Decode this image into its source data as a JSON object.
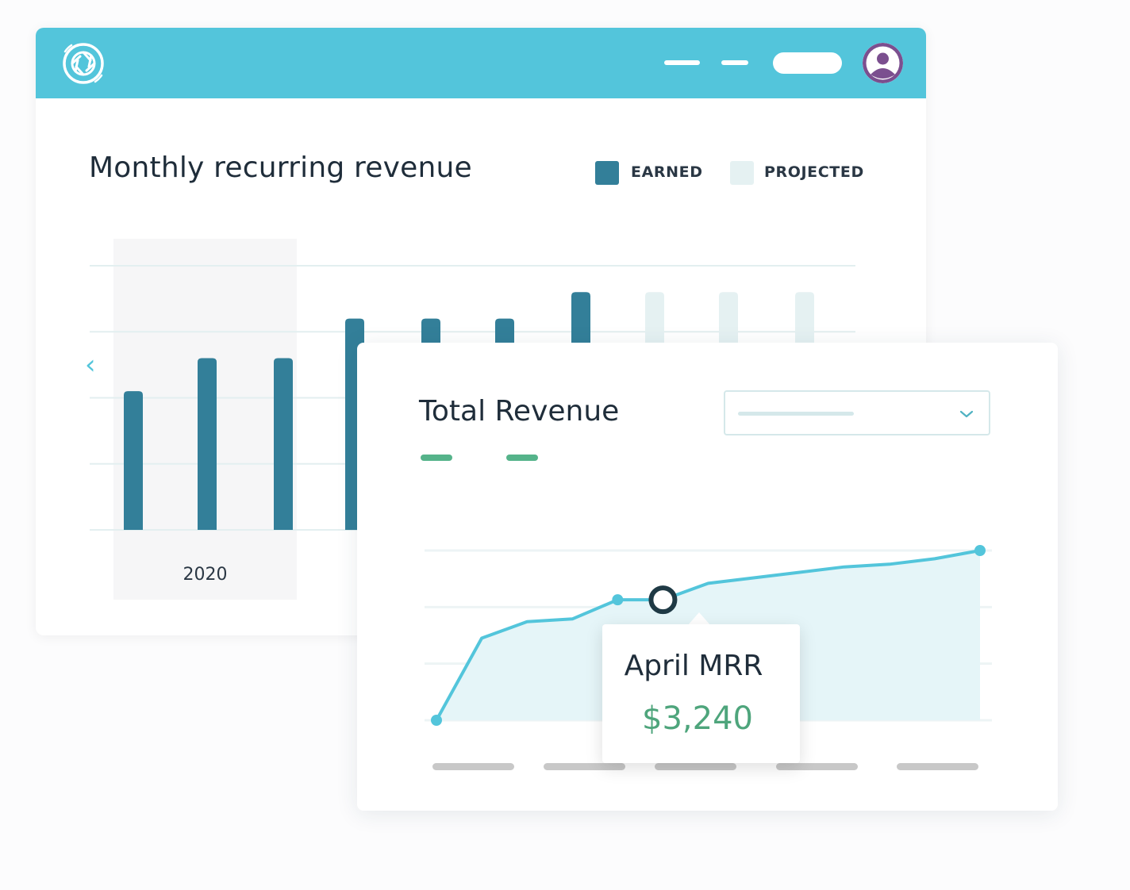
{
  "colors": {
    "topbar": "#53c5db",
    "earned": "#337f99",
    "projected": "#e5f1f2",
    "line": "#53c5db",
    "area": "#e5f5f8",
    "accent_green": "#55b38a",
    "avatar_bg": "#7b4f8f"
  },
  "header": {
    "logo_icon": "aperture-logo-icon",
    "avatar_icon": "user-avatar-icon"
  },
  "mrr_card": {
    "title": "Monthly recurring revenue",
    "legend": [
      {
        "label": "EARNED",
        "color": "#337f99"
      },
      {
        "label": "PROJECTED",
        "color": "#e5f1f2"
      }
    ],
    "year_label": "2020",
    "prev_icon": "chevron-left-icon"
  },
  "revenue_card": {
    "title": "Total Revenue",
    "dropdown_icon": "chevron-down-icon",
    "tooltip": {
      "label": "April MRR",
      "value": "$3,240"
    }
  },
  "chart_data": [
    {
      "type": "bar",
      "title": "Monthly recurring revenue",
      "categories": [
        "",
        "",
        "",
        "",
        "",
        "",
        "",
        "",
        "",
        ""
      ],
      "series": [
        {
          "name": "EARNED",
          "values": [
            2.1,
            2.6,
            2.6,
            3.2,
            3.2,
            3.2,
            3.6,
            null,
            null,
            null
          ]
        },
        {
          "name": "PROJECTED",
          "values": [
            null,
            null,
            null,
            null,
            null,
            null,
            null,
            3.6,
            3.6,
            3.6
          ]
        }
      ],
      "ylim": [
        0,
        4
      ],
      "grid": true,
      "legend": "top-right"
    },
    {
      "type": "area",
      "title": "Total Revenue",
      "x": [
        0,
        1,
        2,
        3,
        4,
        5,
        6,
        7,
        8,
        9,
        10,
        11,
        12
      ],
      "series": [
        {
          "values": [
            0.5,
            2.0,
            2.3,
            2.35,
            2.7,
            2.7,
            3.0,
            3.1,
            3.2,
            3.3,
            3.35,
            3.45,
            3.6
          ]
        }
      ],
      "highlight_index": 5,
      "ylim": [
        0.5,
        3.6
      ],
      "grid": true
    }
  ]
}
